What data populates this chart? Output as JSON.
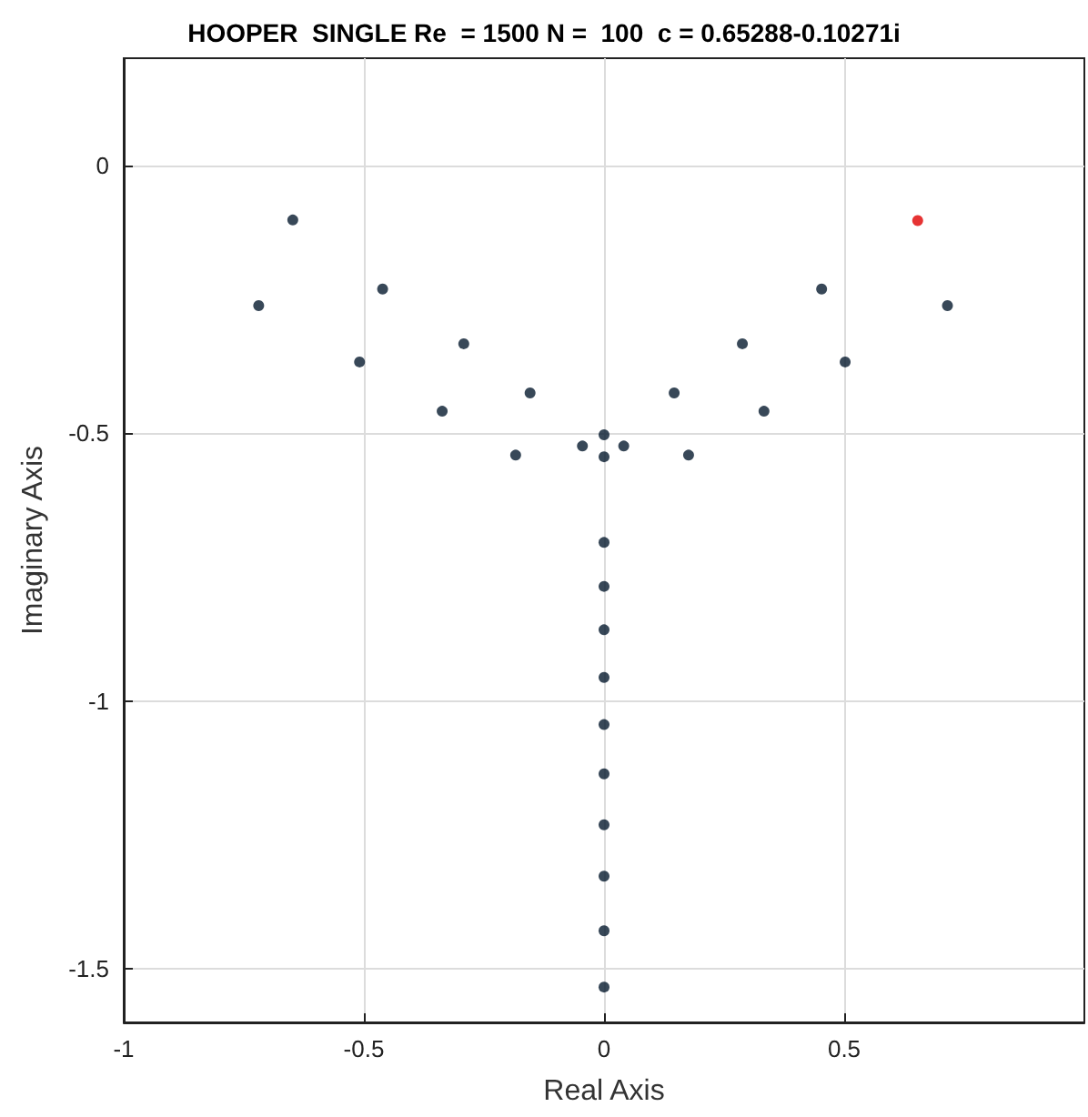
{
  "chart_data": {
    "type": "scatter",
    "title": "HOOPER  SINGLE Re  = 1500 N =  100  c = 0.65288-0.10271i",
    "xlabel": "Real Axis",
    "ylabel": "Imaginary Axis",
    "series": [
      {
        "color": "#061a2e",
        "x": [
          -0.719,
          0.715,
          -0.648,
          -0.461,
          0.453,
          -0.509,
          0.502,
          -0.292,
          0.288,
          -0.337,
          0.333,
          -0.154,
          0.146,
          -0.184,
          0.176,
          -0.045,
          0.041,
          0,
          0,
          0,
          0,
          0,
          0,
          0,
          0,
          0,
          0,
          0,
          0
        ],
        "values": [
          -0.262,
          -0.262,
          -0.102,
          -0.231,
          -0.231,
          -0.367,
          -0.367,
          -0.333,
          -0.333,
          -0.459,
          -0.459,
          -0.425,
          -0.425,
          -0.541,
          -0.541,
          -0.524,
          -0.524,
          -0.503,
          -0.544,
          -0.704,
          -0.786,
          -0.867,
          -0.956,
          -1.044,
          -1.136,
          -1.231,
          -1.327,
          -1.429,
          -1.534
        ]
      },
      {
        "color": "#e00000",
        "x": [
          0.653
        ],
        "values": [
          -0.103
        ]
      }
    ],
    "xlim": [
      -1,
      1
    ],
    "xticks": [
      -1,
      -0.5,
      0,
      0.5
    ],
    "ylim": [
      -1.6,
      0.2
    ],
    "yticks": [
      -1.5,
      -1,
      -0.5,
      0
    ],
    "grid": true,
    "marker": "circle"
  }
}
